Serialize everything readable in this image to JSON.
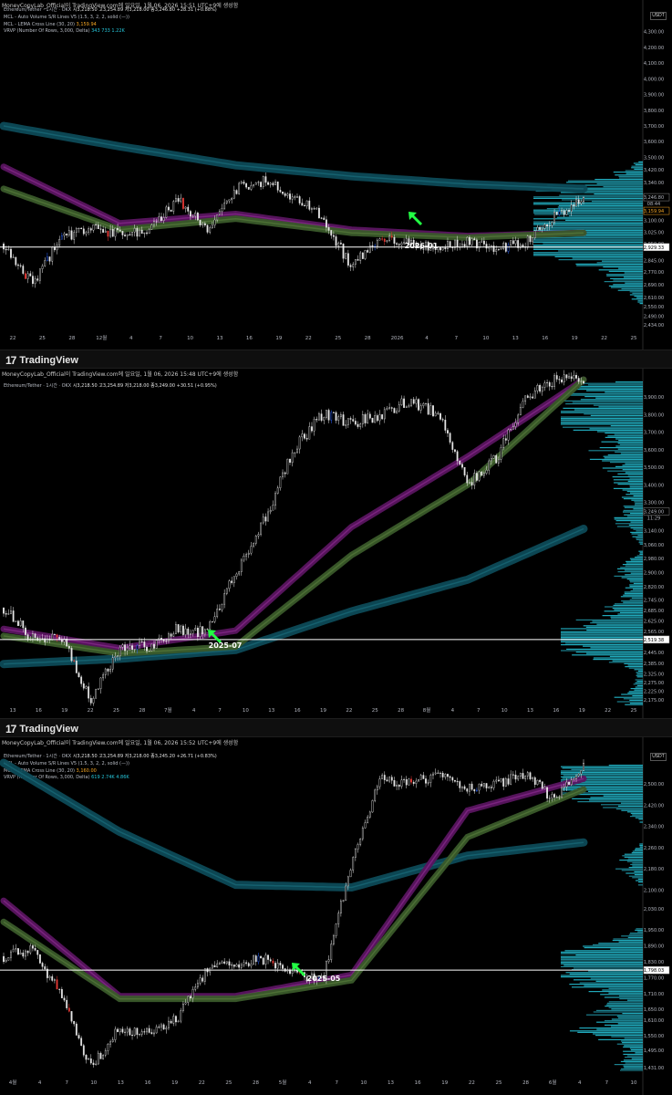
{
  "brand_text": "TradingView",
  "currency": "USDT",
  "charts": [
    {
      "credit": "MoneyCopyLab_Official이 TradingView.com에 일요일, 1월 06, 2026 15:51 UTC+9에 생성함",
      "legend": {
        "symbol": "Ethereum/Tether · 1시간 · OKX",
        "ohlc": "시3,218.50 고3,254.89 저3,218.00 종3,246.80 +28.31 (+0.88%)",
        "mcl1": "MCL - Auto Volume S/R Lines V5 (1.5, 3, 2, 2, solid (—))",
        "mcl2": "MCL - LEMA Cross Line (30, 20)",
        "mcl2_value": "3,159.94",
        "vrvp": "VRVP (Number Of Rows, 3,000, Delta)",
        "vrvp_values": "343  733  1.22K"
      },
      "y_ticks": [
        "4,300.00",
        "4,200.00",
        "4,100.00",
        "4,000.00",
        "3,900.00",
        "3,800.00",
        "3,700.00",
        "3,600.00",
        "3,500.00",
        "3,420.00",
        "3,340.00",
        "3,246.80",
        "3,159.94",
        "3,100.00",
        "3,025.00",
        "2,950.00",
        "2,929.33",
        "2,845.00",
        "2,770.00",
        "2,690.00",
        "2,610.00",
        "2,550.00",
        "2,490.00",
        "2,434.00"
      ],
      "price_tag": "3,246.80",
      "timer_tag": "08:44",
      "mcl_tag": "3,159.94",
      "hline_tag": "2,929.33",
      "x_ticks": [
        "22",
        "25",
        "28",
        "12월",
        "4",
        "7",
        "10",
        "13",
        "16",
        "19",
        "22",
        "25",
        "28",
        "2026",
        "4",
        "7",
        "10",
        "13",
        "16",
        "19",
        "22",
        "25"
      ],
      "annotation": "2026-01",
      "chart_data": {
        "type": "line",
        "description_series": [
          {
            "name": "price",
            "x": [
              0,
              5,
              10,
              15,
              20,
              25,
              30,
              35,
              40,
              45,
              50,
              55,
              60,
              65,
              70,
              75,
              80,
              85,
              90,
              95,
              100
            ],
            "values": [
              2950,
              2700,
              2990,
              3050,
              3010,
              3030,
              3230,
              3050,
              3300,
              3350,
              3250,
              3120,
              2800,
              3000,
              2960,
              2920,
              2970,
              2920,
              2960,
              3120,
              3250
            ]
          },
          {
            "name": "ema-long",
            "x": [
              0,
              20,
              40,
              60,
              80,
              100
            ],
            "values": [
              3700,
              3570,
              3450,
              3380,
              3330,
              3300
            ]
          },
          {
            "name": "ema-mid",
            "x": [
              0,
              20,
              40,
              60,
              80,
              100
            ],
            "values": [
              3440,
              3080,
              3140,
              3040,
              3000,
              3020
            ]
          },
          {
            "name": "ema-short",
            "x": [
              0,
              20,
              40,
              60,
              80,
              100
            ],
            "values": [
              3300,
              3040,
              3110,
              3020,
              2990,
              3020
            ]
          }
        ],
        "hline": 2929.33,
        "ylim": [
          2400,
          4350
        ]
      }
    },
    {
      "credit": "MoneyCopyLab_Official이 TradingView.com에 일요일, 1월 06, 2026 15:48 UTC+9에 생성함",
      "legend": {
        "symbol": "Ethereum/Tether · 1시간 · OKX",
        "ohlc": "시3,218.50 고3,254.89 저3,218.00 종3,249.00 +30.51 (+0.95%)",
        "mcl1": "MCL - Auto Volume S/R Lines V5 (1.5, 3, 2, 2, solid (—))",
        "mcl2": "",
        "mcl2_value": "",
        "vrvp": "",
        "vrvp_values": ""
      },
      "y_ticks": [
        "3,900.00",
        "3,800.00",
        "3,700.00",
        "3,600.00",
        "3,500.00",
        "3,400.00",
        "3,300.00",
        "3,249.00",
        "3,140.00",
        "3,060.00",
        "2,980.00",
        "2,900.00",
        "2,820.00",
        "2,745.00",
        "2,685.00",
        "2,625.00",
        "2,565.00",
        "2,519.38",
        "2,445.00",
        "2,385.00",
        "2,325.00",
        "2,275.00",
        "2,225.00",
        "2,175.00"
      ],
      "price_tag": "3,249.00",
      "timer_tag": "11:29",
      "mcl_tag": "",
      "hline_tag": "2,519.38",
      "x_ticks": [
        "13",
        "16",
        "19",
        "22",
        "25",
        "28",
        "7월",
        "4",
        "7",
        "10",
        "13",
        "16",
        "19",
        "22",
        "25",
        "28",
        "8월",
        "4",
        "7",
        "10",
        "13",
        "16",
        "19",
        "22",
        "25"
      ],
      "annotation": "2025-07",
      "chart_data": {
        "type": "line",
        "description_series": [
          {
            "name": "price",
            "x": [
              0,
              5,
              10,
              15,
              20,
              25,
              30,
              35,
              40,
              45,
              50,
              55,
              60,
              65,
              70,
              75,
              80,
              85,
              90,
              95,
              100
            ],
            "values": [
              2700,
              2520,
              2540,
              2180,
              2470,
              2480,
              2580,
              2560,
              2900,
              3200,
              3600,
              3800,
              3750,
              3800,
              3880,
              3800,
              3400,
              3550,
              3900,
              3999,
              3999
            ]
          },
          {
            "name": "ema-long",
            "x": [
              0,
              20,
              40,
              60,
              80,
              100
            ],
            "values": [
              2380,
              2410,
              2460,
              2680,
              2860,
              3150
            ]
          },
          {
            "name": "ema-mid",
            "x": [
              0,
              20,
              40,
              60,
              80,
              100
            ],
            "values": [
              2580,
              2470,
              2570,
              3160,
              3560,
              3999
            ]
          },
          {
            "name": "ema-short",
            "x": [
              0,
              20,
              40,
              60,
              80,
              100
            ],
            "values": [
              2540,
              2440,
              2480,
              3000,
              3400,
              3999
            ]
          }
        ],
        "hline": 2519.38,
        "ylim": [
          2150,
          3999
        ]
      }
    },
    {
      "credit": "MoneyCopyLab_Official이 TradingView.com에 일요일, 1월 06, 2026 15:52 UTC+9에 생성함",
      "legend": {
        "symbol": "Ethereum/Tether · 1시간 · OKX",
        "ohlc": "시3,218.50 고3,254.89 저3,218.00 종3,245.20 +26.71 (+0.83%)",
        "mcl1": "MCL - Auto Volume S/R Lines V5 (1.5, 3, 2, 2, solid (—))",
        "mcl2": "MCL - LEMA Cross Line (30, 20)",
        "mcl2_value": "3,160.00",
        "vrvp": "VRVP (Number Of Rows, 3,000, Delta)",
        "vrvp_values": "619  2.74K  4.86K"
      },
      "y_ticks": [
        "2,500.00",
        "2,420.00",
        "2,340.00",
        "2,260.00",
        "2,180.00",
        "2,100.00",
        "2,030.00",
        "1,950.00",
        "1,890.00",
        "1,830.00",
        "1,798.03",
        "1,770.00",
        "1,710.00",
        "1,650.00",
        "1,610.00",
        "1,550.00",
        "1,495.00",
        "1,431.00"
      ],
      "price_tag": "",
      "timer_tag": "",
      "mcl_tag": "",
      "hline_tag": "1,798.03",
      "x_ticks": [
        "4월",
        "4",
        "7",
        "10",
        "13",
        "16",
        "19",
        "22",
        "25",
        "28",
        "5월",
        "4",
        "7",
        "10",
        "13",
        "16",
        "19",
        "22",
        "25",
        "28",
        "6월",
        "4",
        "7",
        "10"
      ],
      "annotation": "2025-05",
      "chart_data": {
        "type": "line",
        "description_series": [
          {
            "name": "price",
            "x": [
              0,
              5,
              10,
              15,
              20,
              25,
              30,
              35,
              40,
              45,
              50,
              55,
              60,
              65,
              70,
              75,
              80,
              85,
              90,
              95,
              100
            ],
            "values": [
              1850,
              1880,
              1700,
              1430,
              1580,
              1560,
              1620,
              1800,
              1820,
              1840,
              1790,
              1760,
              2200,
              2520,
              2500,
              2540,
              2480,
              2500,
              2540,
              2440,
              2560
            ]
          },
          {
            "name": "ema-long",
            "x": [
              0,
              20,
              40,
              60,
              80,
              100
            ],
            "values": [
              2580,
              2320,
              2120,
              2110,
              2230,
              2280
            ]
          },
          {
            "name": "ema-mid",
            "x": [
              0,
              20,
              40,
              60,
              80,
              100
            ],
            "values": [
              2060,
              1700,
              1700,
              1780,
              2400,
              2520
            ]
          },
          {
            "name": "ema-short",
            "x": [
              0,
              20,
              40,
              60,
              80,
              100
            ],
            "values": [
              1980,
              1690,
              1690,
              1760,
              2300,
              2480
            ]
          }
        ],
        "hline": 1798.03,
        "ylim": [
          1420,
          2580
        ]
      }
    }
  ]
}
